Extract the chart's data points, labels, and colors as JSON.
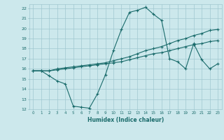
{
  "xlabel": "Humidex (Indice chaleur)",
  "bg_color": "#cce8ec",
  "grid_color": "#a0c8d0",
  "line_color": "#1a6b6b",
  "xlim": [
    -0.5,
    23.5
  ],
  "ylim": [
    12,
    22.4
  ],
  "xticks": [
    0,
    1,
    2,
    3,
    4,
    5,
    6,
    7,
    8,
    9,
    10,
    11,
    12,
    13,
    14,
    15,
    16,
    17,
    18,
    19,
    20,
    21,
    22,
    23
  ],
  "yticks": [
    12,
    13,
    14,
    15,
    16,
    17,
    18,
    19,
    20,
    21,
    22
  ],
  "line1_x": [
    0,
    1,
    2,
    3,
    4,
    5,
    6,
    7,
    8,
    9,
    10,
    11,
    12,
    13,
    14,
    15,
    16,
    17,
    18,
    19,
    20,
    21,
    22,
    23
  ],
  "line1_y": [
    15.8,
    15.8,
    15.3,
    14.8,
    14.5,
    12.3,
    12.2,
    12.1,
    13.5,
    15.4,
    17.8,
    19.9,
    21.6,
    21.8,
    22.1,
    21.4,
    20.8,
    17.0,
    16.7,
    16.0,
    18.5,
    16.9,
    16.0,
    16.5
  ],
  "line2_x": [
    0,
    1,
    2,
    3,
    4,
    5,
    6,
    7,
    8,
    9,
    10,
    11,
    12,
    13,
    14,
    15,
    16,
    17,
    18,
    19,
    20,
    21,
    22,
    23
  ],
  "line2_y": [
    15.8,
    15.8,
    15.8,
    16.0,
    16.1,
    16.2,
    16.3,
    16.4,
    16.5,
    16.6,
    16.8,
    17.0,
    17.2,
    17.5,
    17.8,
    18.0,
    18.2,
    18.5,
    18.8,
    19.0,
    19.3,
    19.5,
    19.8,
    19.9
  ],
  "line3_x": [
    0,
    1,
    2,
    3,
    4,
    5,
    6,
    7,
    8,
    9,
    10,
    11,
    12,
    13,
    14,
    15,
    16,
    17,
    18,
    19,
    20,
    21,
    22,
    23
  ],
  "line3_y": [
    15.8,
    15.8,
    15.8,
    15.9,
    16.0,
    16.1,
    16.2,
    16.3,
    16.4,
    16.5,
    16.6,
    16.7,
    16.9,
    17.1,
    17.3,
    17.5,
    17.6,
    17.8,
    18.0,
    18.2,
    18.4,
    18.5,
    18.7,
    18.8
  ]
}
